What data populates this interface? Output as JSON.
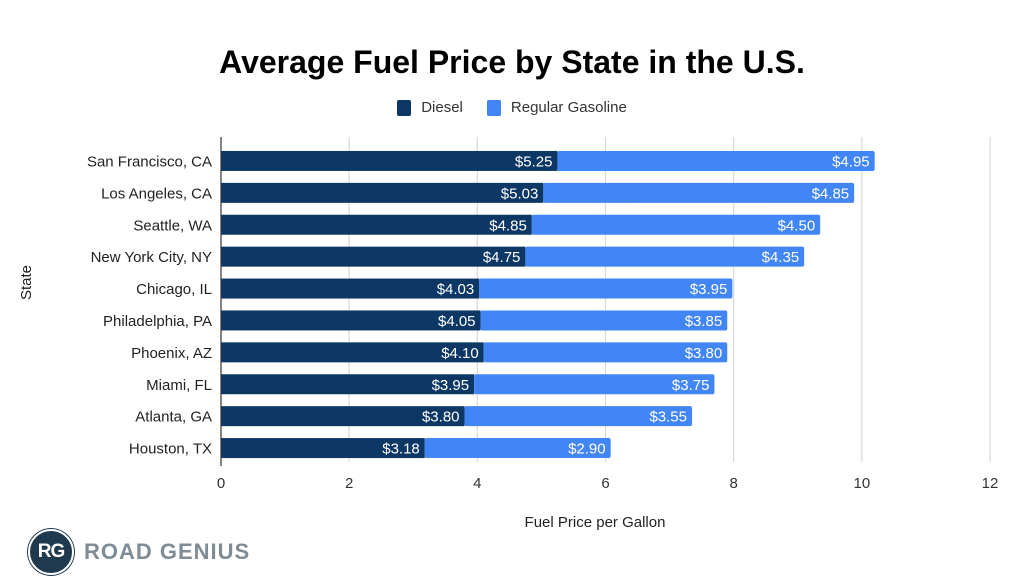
{
  "chart_data": {
    "type": "bar",
    "orientation": "horizontal",
    "stacked": true,
    "title": "Average Fuel Price by State in the U.S.",
    "xlabel": "Fuel Price per Gallon",
    "ylabel": "State",
    "xlim": [
      0,
      12
    ],
    "xticks": [
      0,
      2,
      4,
      6,
      8,
      10,
      12
    ],
    "grid": true,
    "legend_position": "top-center",
    "categories": [
      "San Francisco, CA",
      "Los Angeles, CA",
      "Seattle, WA",
      "New York City, NY",
      "Chicago, IL",
      "Philadelphia, PA",
      "Phoenix, AZ",
      "Miami, FL",
      "Atlanta, GA",
      "Houston, TX"
    ],
    "series": [
      {
        "name": "Diesel",
        "color": "#0d3865",
        "values": [
          5.25,
          5.03,
          4.85,
          4.75,
          4.03,
          4.05,
          4.1,
          3.95,
          3.8,
          3.18
        ],
        "labels": [
          "$5.25",
          "$5.03",
          "$4.85",
          "$4.75",
          "$4.03",
          "$4.05",
          "$4.10",
          "$3.95",
          "$3.80",
          "$3.18"
        ]
      },
      {
        "name": "Regular Gasoline",
        "color": "#4285f4",
        "values": [
          4.95,
          4.85,
          4.5,
          4.35,
          3.95,
          3.85,
          3.8,
          3.75,
          3.55,
          2.9
        ],
        "labels": [
          "$4.95",
          "$4.85",
          "$4.50",
          "$4.35",
          "$3.95",
          "$3.85",
          "$3.80",
          "$3.75",
          "$3.55",
          "$2.90"
        ]
      }
    ]
  },
  "branding": {
    "logo_initials": "RG",
    "logo_text": "ROAD GENIUS"
  }
}
